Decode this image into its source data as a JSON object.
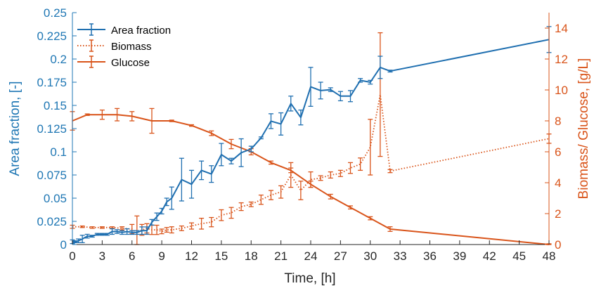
{
  "chart_data": {
    "type": "line",
    "xlabel": "Time, [h]",
    "ylabel_left": "Area fraction, [-]",
    "ylabel_right": "Biomass/ Glucose, [g/L]",
    "xlim": [
      0,
      48
    ],
    "ylim_left": [
      0,
      0.25
    ],
    "ylim_right": [
      0,
      15
    ],
    "grid": false,
    "legend_position": "top-left",
    "x_ticks": [
      0,
      3,
      6,
      9,
      12,
      15,
      18,
      21,
      24,
      27,
      30,
      33,
      36,
      39,
      42,
      45,
      48
    ],
    "x_tick_labels": [
      "0",
      "3",
      "6",
      "9",
      "12",
      "15",
      "18",
      "21",
      "24",
      "27",
      "30",
      "33",
      "36",
      "39",
      "42",
      "45",
      "48"
    ],
    "y_left_ticks": [
      0,
      0.025,
      0.05,
      0.075,
      0.1,
      0.125,
      0.15,
      0.175,
      0.2,
      0.225,
      0.25
    ],
    "y_left_tick_labels": [
      "0",
      "0.025",
      "0.05",
      "0.075",
      "0.1",
      "0.125",
      "0.15",
      "0.175",
      "0.2",
      "0.225",
      "0.25"
    ],
    "y_right_ticks": [
      0,
      2,
      4,
      6,
      8,
      10,
      12,
      14
    ],
    "y_right_tick_labels": [
      "0",
      "2",
      "4",
      "6",
      "8",
      "10",
      "12",
      "14"
    ],
    "colors": {
      "area": "#1f6fb0",
      "orange": "#d9541a",
      "axis_left": "#1f77b4",
      "axis_right": "#d9541a"
    },
    "series": [
      {
        "name": "Area fraction",
        "axis": "left",
        "style": "solid",
        "x": [
          0,
          0.3,
          0.6,
          1,
          1.5,
          2,
          2.5,
          3,
          3.5,
          4,
          4.5,
          5,
          5.5,
          6,
          6.5,
          7,
          7.5,
          8,
          8.5,
          9,
          9.5,
          10,
          11,
          12,
          13,
          14,
          15,
          16,
          17,
          18,
          19,
          20,
          21,
          22,
          23,
          24,
          25,
          26,
          27,
          28,
          29,
          30,
          31,
          32,
          48
        ],
        "y": [
          0.003,
          0.003,
          0.004,
          0.006,
          0.009,
          0.009,
          0.011,
          0.011,
          0.011,
          0.014,
          0.014,
          0.013,
          0.014,
          0.013,
          0.013,
          0.015,
          0.015,
          0.024,
          0.03,
          0.036,
          0.046,
          0.05,
          0.07,
          0.065,
          0.08,
          0.076,
          0.097,
          0.09,
          0.099,
          0.103,
          0.115,
          0.133,
          0.13,
          0.152,
          0.137,
          0.17,
          0.166,
          0.167,
          0.16,
          0.16,
          0.177,
          0.175,
          0.191,
          0.187,
          0.221
        ],
        "err": [
          0.002,
          0.001,
          0.002,
          0.004,
          0.002,
          0.001,
          0.001,
          0.001,
          0.001,
          0.003,
          0.002,
          0.002,
          0.003,
          0.002,
          0.002,
          0.004,
          0.004,
          0.003,
          0.004,
          0.003,
          0.004,
          0.012,
          0.023,
          0.015,
          0.01,
          0.009,
          0.012,
          0.003,
          0.015,
          0.003,
          0.001,
          0.008,
          0.012,
          0.008,
          0.008,
          0.021,
          0.009,
          0.002,
          0.005,
          0.006,
          0.002,
          0.002,
          0.012,
          0.001,
          0.014
        ]
      },
      {
        "name": "Biomass",
        "axis": "right",
        "style": "dotted",
        "x": [
          0,
          1,
          2,
          3,
          4,
          5,
          6,
          6.5,
          7,
          7.5,
          8,
          8.5,
          9,
          9.5,
          10,
          11,
          12,
          13,
          14,
          15,
          16,
          17,
          18,
          19,
          20,
          21,
          22,
          23,
          24,
          25,
          26,
          27,
          28,
          29,
          30,
          31,
          32,
          48
        ],
        "y": [
          1.15,
          1.15,
          1.1,
          1.1,
          1.1,
          1.05,
          1.0,
          0.75,
          0.95,
          1.05,
          0.95,
          0.95,
          0.85,
          0.95,
          0.95,
          1.05,
          1.2,
          1.35,
          1.45,
          1.9,
          2.05,
          2.45,
          2.6,
          2.9,
          3.2,
          3.4,
          4.5,
          3.5,
          4.2,
          4.3,
          4.5,
          4.6,
          4.95,
          5.2,
          6.3,
          9.7,
          4.75,
          6.85
        ],
        "err": [
          0.1,
          0.05,
          0.05,
          0.05,
          0.05,
          0.1,
          0.3,
          1.1,
          0.35,
          0.3,
          0.3,
          0.3,
          0.15,
          0.15,
          0.2,
          0.15,
          0.2,
          0.35,
          0.3,
          0.35,
          0.35,
          0.25,
          0.15,
          0.3,
          0.3,
          0.4,
          0.8,
          0.6,
          0.5,
          0.15,
          0.2,
          0.2,
          0.35,
          0.4,
          1.8,
          4.0,
          0.1,
          0.3
        ]
      },
      {
        "name": "Glucose",
        "axis": "right",
        "style": "solid",
        "x": [
          0,
          1.5,
          3,
          4.5,
          6,
          8,
          10,
          12,
          14,
          16,
          18,
          20,
          22,
          24,
          26,
          28,
          30,
          32,
          48
        ],
        "y": [
          8.0,
          8.4,
          8.4,
          8.4,
          8.3,
          8.0,
          8.0,
          7.7,
          7.2,
          6.5,
          6.0,
          5.3,
          4.8,
          3.9,
          3.1,
          2.4,
          1.7,
          1.0,
          0.0
        ],
        "err": [
          0.6,
          0.05,
          0.3,
          0.4,
          0.3,
          0.8,
          0.05,
          0.05,
          0.15,
          0.3,
          0.2,
          0.1,
          0.15,
          0.2,
          0.15,
          0.1,
          0.1,
          0.15,
          0.05
        ]
      }
    ]
  }
}
